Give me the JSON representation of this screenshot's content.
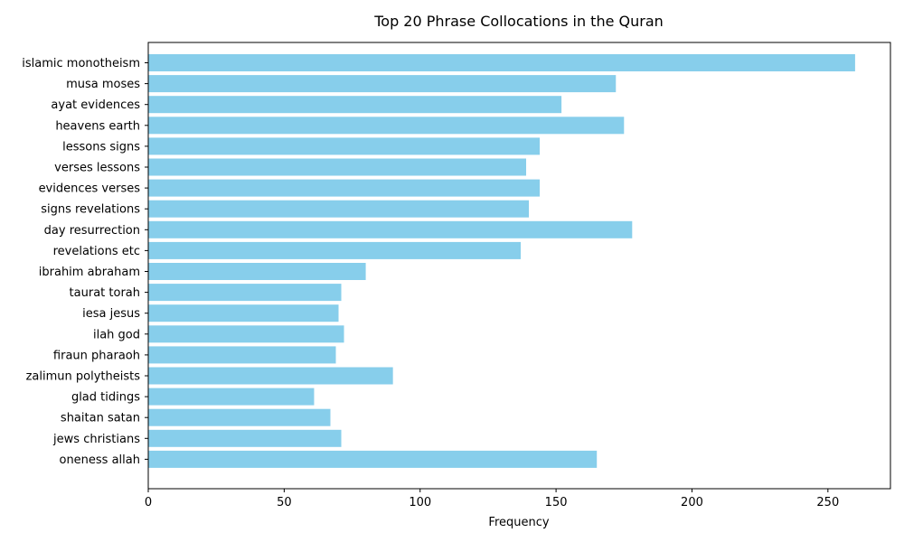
{
  "chart_data": {
    "type": "bar",
    "orientation": "horizontal",
    "title": "Top 20 Phrase Collocations in the Quran",
    "xlabel": "Frequency",
    "ylabel": "",
    "xlim": [
      0,
      273
    ],
    "xticks": [
      0,
      50,
      100,
      150,
      200,
      250
    ],
    "grid": false,
    "bar_color": "#87ceeb",
    "categories": [
      "islamic monotheism",
      "musa moses",
      "ayat evidences",
      "heavens earth",
      "lessons signs",
      "verses lessons",
      "evidences verses",
      "signs revelations",
      "day resurrection",
      "revelations etc",
      "ibrahim abraham",
      "taurat torah",
      "iesa jesus",
      "ilah god",
      "firaun pharaoh",
      "zalimun polytheists",
      "glad tidings",
      "shaitan satan",
      "jews christians",
      "oneness allah"
    ],
    "values": [
      260,
      172,
      152,
      175,
      144,
      139,
      144,
      140,
      178,
      137,
      80,
      71,
      70,
      72,
      69,
      90,
      61,
      67,
      71,
      165
    ]
  }
}
